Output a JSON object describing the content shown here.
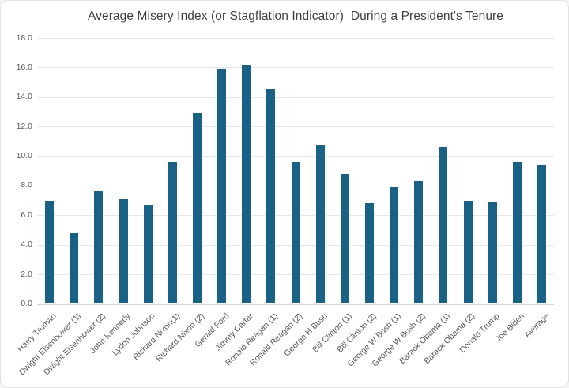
{
  "chart_data": {
    "type": "bar",
    "title": "Average Misery Index (or Stagflation Indicator)  During a President's Tenure",
    "categories": [
      "Harry Truman",
      "Dwight Eisenhower (1)",
      "Dwight Eisenhower (2)",
      "John Kennedy",
      "Lydon Johnson",
      "Richard Nixon(1)",
      "Richard Nixon (2)",
      "Gerald Ford",
      "Jimmy Carter",
      "Ronald Reagan (1)",
      "Ronald Reagan (2)",
      "George H Bush",
      "Bill Clinton (1)",
      "Bill Clinton (2)",
      "George W Bush (1)",
      "George W Bush (2)",
      "Barack Obama (1)",
      "Barack Obama (2)",
      "Donald Trump",
      "Joe Biden",
      "Average"
    ],
    "values": [
      7.0,
      4.8,
      7.6,
      7.1,
      6.7,
      9.6,
      12.9,
      15.9,
      16.2,
      14.5,
      9.6,
      10.7,
      8.8,
      6.8,
      7.9,
      8.3,
      10.6,
      7.0,
      6.9,
      9.6,
      9.4
    ],
    "xlabel": "",
    "ylabel": "",
    "ylim": [
      0,
      18
    ],
    "ytick_step": 2,
    "ytick_labels": [
      "0.0",
      "2.0",
      "4.0",
      "6.0",
      "8.0",
      "10.0",
      "12.0",
      "14.0",
      "16.0",
      "18.0"
    ],
    "grid": true,
    "legend": false
  },
  "colors": {
    "bar": "#196285",
    "gridline": "#e6e6e6",
    "axis_line": "#d4d4d4",
    "tick_text": "#595959",
    "title_text": "#3f3f3f",
    "chart_border": "#e2e2e2",
    "background": "#ffffff"
  }
}
